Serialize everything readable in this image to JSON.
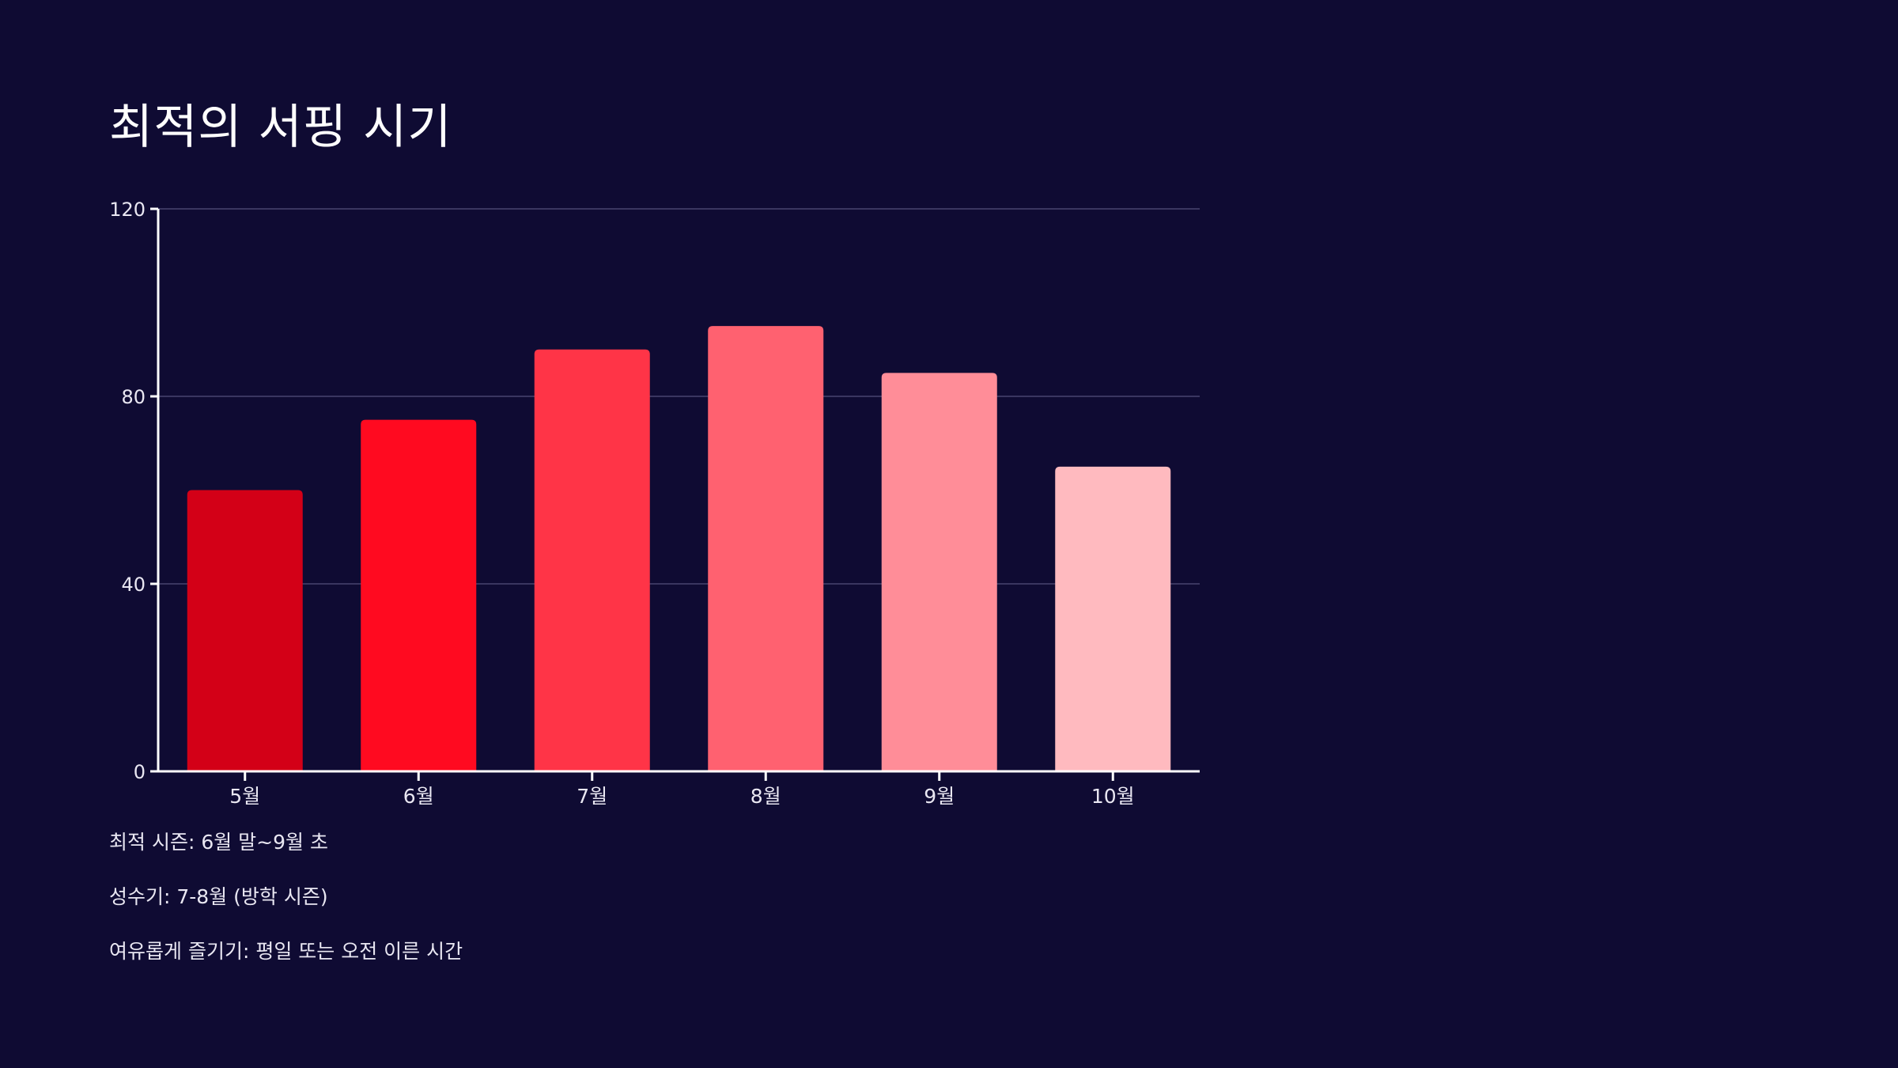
{
  "chart_data": {
    "type": "bar",
    "title": "최적의 서핑 시기",
    "categories": [
      "5월",
      "6월",
      "7월",
      "8월",
      "9월",
      "10월"
    ],
    "values": [
      60,
      75,
      90,
      95,
      85,
      65
    ],
    "ylim": [
      0,
      120
    ],
    "yticks": [
      0,
      40,
      80,
      120
    ],
    "grid": true,
    "xlabel": "",
    "ylabel": "",
    "colors": [
      "#d30017",
      "#ff0a20",
      "#ff3447",
      "#ff6170",
      "#ff8d98",
      "#ffbabf"
    ]
  },
  "notes": [
    "최적 시즌: 6월 말~9월 초",
    "성수기: 7-8월 (방학 시즌)",
    "여유롭게 즐기기: 평일 또는 오전 이른 시간"
  ],
  "theme": {
    "background": "#0f0b33",
    "axis": "#ffffff",
    "grid": "#3a3660",
    "text": "#e9e7f2"
  }
}
